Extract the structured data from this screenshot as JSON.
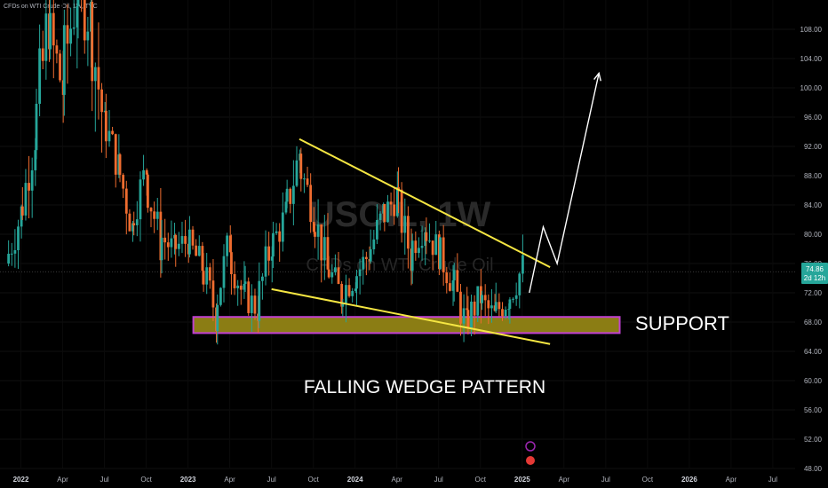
{
  "header": {
    "title": "CFDs on WTI Crude Oil, 1W, TVC"
  },
  "watermark": {
    "symbol": "USOIL, 1W",
    "name": "CFDs on WTI Crude Oil"
  },
  "price_badge": {
    "price": "74.86",
    "countdown": "2d 12h",
    "color": "#26a69a"
  },
  "colors": {
    "background": "#000000",
    "up_candle": "#26a69a",
    "down_candle": "#ef6c2f",
    "trendline": "#f5e642",
    "support_fill": "#8b7d14",
    "support_border": "#c040d0",
    "arrow": "#ffffff"
  },
  "annotations": {
    "support_label": "SUPPORT",
    "pattern_label": "FALLING WEDGE PATTERN"
  },
  "chart_data": {
    "type": "candlestick",
    "title": "CFDs on WTI Crude Oil, 1W, TVC",
    "ylim": [
      48,
      112
    ],
    "y_ticks": [
      48,
      52,
      56,
      60,
      64,
      68,
      72,
      76,
      80,
      84,
      88,
      92,
      96,
      100,
      104,
      108
    ],
    "y_tick_labels": [
      "48.00",
      "52.00",
      "56.00",
      "60.00",
      "64.00",
      "68.00",
      "72.00",
      "76.00",
      "80.00",
      "84.00",
      "88.00",
      "92.00",
      "96.00",
      "100.00",
      "104.00",
      "108.00"
    ],
    "x_tick_labels": [
      {
        "label": "2022",
        "date": "2022-01",
        "year": true
      },
      {
        "label": "Apr",
        "date": "2022-04",
        "year": false
      },
      {
        "label": "Jul",
        "date": "2022-07",
        "year": false
      },
      {
        "label": "Oct",
        "date": "2022-10",
        "year": false
      },
      {
        "label": "2023",
        "date": "2023-01",
        "year": true
      },
      {
        "label": "Apr",
        "date": "2023-04",
        "year": false
      },
      {
        "label": "Jul",
        "date": "2023-07",
        "year": false
      },
      {
        "label": "Oct",
        "date": "2023-10",
        "year": false
      },
      {
        "label": "2024",
        "date": "2024-01",
        "year": true
      },
      {
        "label": "Apr",
        "date": "2024-04",
        "year": false
      },
      {
        "label": "Jul",
        "date": "2024-07",
        "year": false
      },
      {
        "label": "Oct",
        "date": "2024-10",
        "year": false
      },
      {
        "label": "2025",
        "date": "2025-01",
        "year": true
      },
      {
        "label": "Apr",
        "date": "2025-04",
        "year": false
      },
      {
        "label": "Jul",
        "date": "2025-07",
        "year": false
      },
      {
        "label": "Oct",
        "date": "2025-10",
        "year": false
      },
      {
        "label": "2026",
        "date": "2026-01",
        "year": true
      },
      {
        "label": "Apr",
        "date": "2026-04",
        "year": false
      },
      {
        "label": "Jul",
        "date": "2026-07",
        "year": false
      }
    ],
    "series": [
      {
        "name": "",
        "points": [
          [
            "2021-12",
            76
          ],
          [
            "2022-01",
            82
          ],
          [
            "2022-02",
            92
          ],
          [
            "2022-03",
            108
          ],
          [
            "2022-04",
            101
          ],
          [
            "2022-05",
            112
          ],
          [
            "2022-06",
            110
          ],
          [
            "2022-07",
            96
          ],
          [
            "2022-08",
            90
          ],
          [
            "2022-09",
            82
          ],
          [
            "2022-10",
            88
          ],
          [
            "2022-11",
            80
          ],
          [
            "2022-12",
            78
          ],
          [
            "2023-01",
            79
          ],
          [
            "2023-02",
            76
          ],
          [
            "2023-03",
            70
          ],
          [
            "2023-04",
            78
          ],
          [
            "2023-05",
            72
          ],
          [
            "2023-06",
            70
          ],
          [
            "2023-07",
            78
          ],
          [
            "2023-08",
            82
          ],
          [
            "2023-09",
            90
          ],
          [
            "2023-10",
            84
          ],
          [
            "2023-11",
            76
          ],
          [
            "2023-12",
            72
          ],
          [
            "2024-01",
            74
          ],
          [
            "2024-02",
            77
          ],
          [
            "2024-03",
            82
          ],
          [
            "2024-04",
            85
          ],
          [
            "2024-05",
            78
          ],
          [
            "2024-06",
            81
          ],
          [
            "2024-07",
            78
          ],
          [
            "2024-08",
            74
          ],
          [
            "2024-09",
            68
          ],
          [
            "2024-10",
            71
          ],
          [
            "2024-11",
            69
          ],
          [
            "2024-12",
            71
          ],
          [
            "2025-01",
            74.86
          ]
        ]
      }
    ],
    "support_zone": {
      "low": 66.5,
      "high": 68.7,
      "from": "2023-01",
      "to": "2025-08"
    },
    "upper_trendline": [
      [
        "2023-09",
        93
      ],
      [
        "2025-03",
        75.5
      ]
    ],
    "lower_trendline": [
      [
        "2023-07",
        72.5
      ],
      [
        "2025-03",
        65
      ]
    ],
    "projection_path": [
      [
        "2025-01",
        72
      ],
      [
        "2025-02",
        81
      ],
      [
        "2025-03",
        76
      ],
      [
        "2025-06",
        102
      ]
    ],
    "current_price": 74.86
  }
}
